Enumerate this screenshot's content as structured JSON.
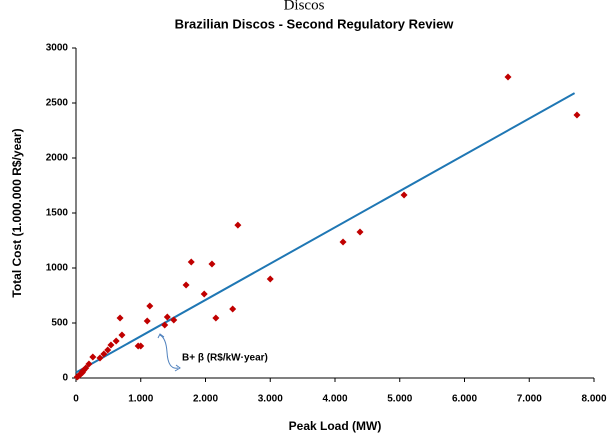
{
  "chart_data": {
    "type": "scatter",
    "caption": "Discos",
    "title": "Brazilian Discos - Second Regulatory Review",
    "xlabel": "Peak Load (MW)",
    "ylabel": "Total Cost (1.000.000 R$/year)",
    "annotation": "B+ β (R$/kW·year)",
    "xlim": [
      0,
      8000
    ],
    "ylim": [
      0,
      3000
    ],
    "xticks": [
      0,
      {
        "value": 1000,
        "label": "1.000"
      },
      {
        "value": 2000,
        "label": "2.000"
      },
      {
        "value": 3000,
        "label": "3.000"
      },
      {
        "value": 4000,
        "label": "4.000"
      },
      {
        "value": 5000,
        "label": "5.000"
      },
      {
        "value": 6000,
        "label": "6.000"
      },
      {
        "value": 7000,
        "label": "7.000"
      },
      {
        "value": 8000,
        "label": "8.000"
      }
    ],
    "yticks": [
      0,
      500,
      1000,
      1500,
      2000,
      2500,
      3000
    ],
    "grid": false,
    "series": [
      {
        "color": "#c00000",
        "x": [
          6672,
          7737,
          5066,
          4386,
          4124,
          2500,
          3000,
          2420,
          2160,
          2100,
          1780,
          1700,
          1980,
          1370,
          1410,
          1510,
          1140,
          1100,
          960,
          1000,
          680,
          710,
          620,
          540,
          490,
          430,
          370,
          260,
          200,
          150,
          120,
          100,
          80,
          50,
          30,
          20,
          60,
          100
        ],
        "values": [
          2736,
          2391,
          1664,
          1327,
          1236,
          1390,
          900,
          627,
          545,
          1036,
          1055,
          845,
          764,
          482,
          555,
          527,
          655,
          518,
          291,
          291,
          545,
          391,
          336,
          300,
          255,
          218,
          182,
          191,
          127,
          90,
          70,
          50,
          40,
          25,
          15,
          10,
          30,
          60
        ]
      }
    ],
    "trend_line": {
      "color": "#1f77b4",
      "x": [
        0,
        7700
      ],
      "y": [
        50,
        2590
      ]
    }
  }
}
